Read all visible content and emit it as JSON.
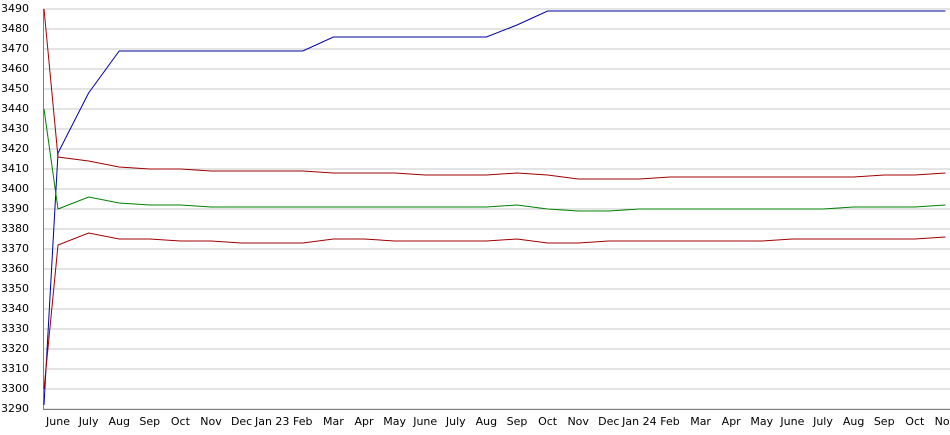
{
  "chart_data": {
    "type": "line",
    "categories": [
      null,
      "June",
      "July",
      "Aug",
      "Sep",
      "Oct",
      "Nov",
      "Dec",
      "Jan 23",
      "Feb",
      "Mar",
      "Apr",
      "May",
      "June",
      "July",
      "Aug",
      "Sep",
      "Oct",
      "Nov",
      "Dec",
      "Jan 24",
      "Feb",
      "Mar",
      "Apr",
      "May",
      "June",
      "July",
      "Aug",
      "Sep",
      "Oct",
      "Nov"
    ],
    "series": [
      {
        "color": "#0000a0",
        "values": [
          3292,
          3418,
          3448,
          3469,
          3469,
          3469,
          3469,
          3469,
          3469,
          3469,
          3476,
          3476,
          3476,
          3476,
          3476,
          3476,
          3482,
          3489,
          3489,
          3489,
          3489,
          3489,
          3489,
          3489,
          3489,
          3489,
          3489,
          3489,
          3489,
          3489,
          3489
        ]
      },
      {
        "color": "#a00000",
        "values": [
          3490,
          3416,
          3414,
          3411,
          3410,
          3410,
          3409,
          3409,
          3409,
          3409,
          3408,
          3408,
          3408,
          3407,
          3407,
          3407,
          3408,
          3407,
          3405,
          3405,
          3405,
          3406,
          3406,
          3406,
          3406,
          3406,
          3406,
          3406,
          3407,
          3407,
          3408
        ]
      },
      {
        "color": "#008000",
        "values": [
          3440,
          3390,
          3396,
          3393,
          3392,
          3392,
          3391,
          3391,
          3391,
          3391,
          3391,
          3391,
          3391,
          3391,
          3391,
          3391,
          3392,
          3390,
          3389,
          3389,
          3390,
          3390,
          3390,
          3390,
          3390,
          3390,
          3390,
          3391,
          3391,
          3391,
          3392
        ]
      },
      {
        "color": "#a00000",
        "values": [
          3300,
          3372,
          3378,
          3375,
          3375,
          3374,
          3374,
          3373,
          3373,
          3373,
          3375,
          3375,
          3374,
          3374,
          3374,
          3374,
          3375,
          3373,
          3373,
          3374,
          3374,
          3374,
          3374,
          3374,
          3374,
          3375,
          3375,
          3375,
          3375,
          3375,
          3376
        ]
      }
    ],
    "ylim": [
      3290,
      3490
    ],
    "yticks": [
      3290,
      3300,
      3310,
      3320,
      3330,
      3340,
      3350,
      3360,
      3370,
      3380,
      3390,
      3400,
      3410,
      3420,
      3430,
      3440,
      3450,
      3460,
      3470,
      3480,
      3490
    ],
    "grid": true
  }
}
